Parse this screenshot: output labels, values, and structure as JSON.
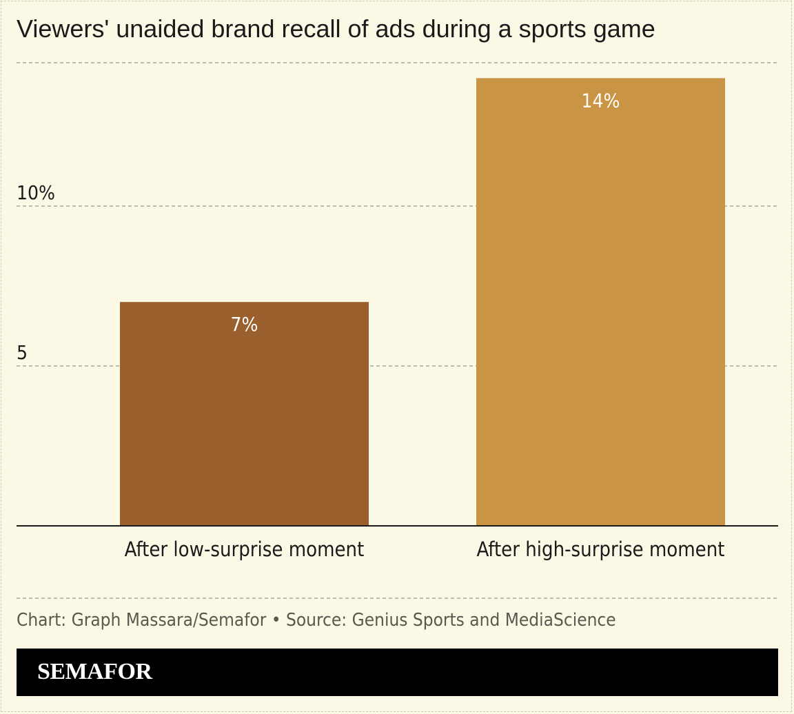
{
  "title": "Viewers' unaided brand recall of ads during a sports game",
  "source": "Chart: Graph Massara/Semafor • Source: Genius Sports and MediaScience",
  "brand": "SEMAFOR",
  "colors": {
    "background": "#fbf8e6",
    "low_bar": "#995f2d",
    "high_bar": "#c99443",
    "gridline": "#aaa69a",
    "axis": "#1a1a1a"
  },
  "chart_data": {
    "type": "bar",
    "categories": [
      "After low-surprise moment",
      "After high-surprise moment"
    ],
    "values": [
      7,
      14
    ],
    "value_labels": [
      "7%",
      "14%"
    ],
    "yticks": [
      {
        "value": 5,
        "label": "5"
      },
      {
        "value": 10,
        "label": "10%"
      }
    ],
    "ylim": [
      0,
      14.5
    ],
    "grid": true,
    "xlabel": "",
    "ylabel": ""
  }
}
